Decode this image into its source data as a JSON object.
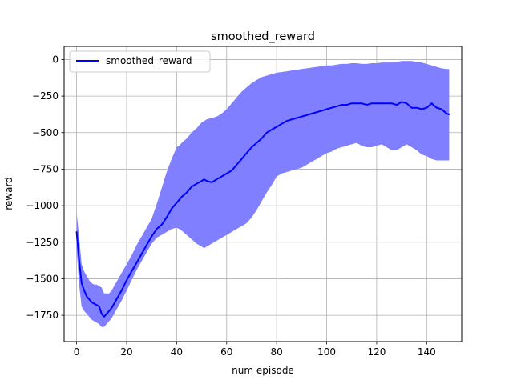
{
  "chart_data": {
    "type": "line",
    "title": "smoothed_reward",
    "xlabel": "num episode",
    "ylabel": "reward",
    "xlim": [
      -5,
      154
    ],
    "ylim": [
      -1930,
      90
    ],
    "xticks": [
      0,
      20,
      40,
      60,
      80,
      100,
      120,
      140
    ],
    "yticks": [
      0,
      -250,
      -500,
      -750,
      -1000,
      -1250,
      -1500,
      -1750
    ],
    "xtick_labels": [
      "0",
      "20",
      "40",
      "60",
      "80",
      "100",
      "120",
      "140"
    ],
    "ytick_labels": [
      "0",
      "−250",
      "−500",
      "−750",
      "−1000",
      "−1250",
      "−1500",
      "−1750"
    ],
    "grid": true,
    "legend": {
      "position": "top-left",
      "entries": [
        "smoothed_reward"
      ]
    },
    "series": [
      {
        "name": "smoothed_reward",
        "color": "#0000ff",
        "band_color": "#7f7fff",
        "x": [
          0,
          1,
          2,
          3,
          4,
          5,
          6,
          7,
          8,
          9,
          10,
          11,
          12,
          13,
          14,
          15,
          16,
          18,
          20,
          22,
          24,
          26,
          28,
          30,
          32,
          34,
          36,
          38,
          40,
          41,
          42,
          44,
          46,
          48,
          50,
          51,
          52,
          54,
          56,
          58,
          60,
          62,
          64,
          66,
          68,
          70,
          72,
          74,
          76,
          78,
          80,
          82,
          84,
          86,
          88,
          90,
          92,
          94,
          96,
          98,
          100,
          102,
          104,
          106,
          108,
          110,
          112,
          114,
          116,
          118,
          120,
          122,
          124,
          126,
          128,
          130,
          132,
          134,
          136,
          138,
          140,
          142,
          144,
          146,
          148,
          149
        ],
        "values": [
          -1180,
          -1370,
          -1530,
          -1580,
          -1620,
          -1640,
          -1660,
          -1670,
          -1680,
          -1690,
          -1740,
          -1760,
          -1740,
          -1720,
          -1700,
          -1670,
          -1640,
          -1580,
          -1510,
          -1450,
          -1390,
          -1330,
          -1270,
          -1210,
          -1160,
          -1130,
          -1080,
          -1020,
          -980,
          -960,
          -940,
          -910,
          -870,
          -850,
          -830,
          -820,
          -830,
          -840,
          -820,
          -800,
          -780,
          -760,
          -720,
          -680,
          -640,
          -600,
          -570,
          -540,
          -500,
          -480,
          -460,
          -440,
          -420,
          -410,
          -400,
          -390,
          -380,
          -370,
          -360,
          -350,
          -340,
          -330,
          -320,
          -310,
          -310,
          -300,
          -300,
          -300,
          -310,
          -300,
          -300,
          -300,
          -300,
          -300,
          -310,
          -290,
          -300,
          -330,
          -330,
          -340,
          -330,
          -300,
          -330,
          -340,
          -370,
          -375
        ],
        "upper": [
          -1050,
          -1210,
          -1400,
          -1450,
          -1480,
          -1510,
          -1530,
          -1540,
          -1540,
          -1550,
          -1560,
          -1600,
          -1600,
          -1600,
          -1580,
          -1550,
          -1520,
          -1460,
          -1400,
          -1340,
          -1270,
          -1210,
          -1150,
          -1090,
          -990,
          -880,
          -770,
          -680,
          -600,
          -590,
          -570,
          -540,
          -500,
          -470,
          -430,
          -420,
          -410,
          -400,
          -390,
          -370,
          -340,
          -300,
          -260,
          -220,
          -190,
          -160,
          -140,
          -120,
          -110,
          -100,
          -90,
          -85,
          -80,
          -75,
          -70,
          -65,
          -60,
          -55,
          -50,
          -45,
          -40,
          -40,
          -35,
          -30,
          -30,
          -25,
          -25,
          -30,
          -30,
          -25,
          -25,
          -20,
          -20,
          -20,
          -15,
          -10,
          -10,
          -10,
          -15,
          -20,
          -30,
          -40,
          -50,
          -60,
          -65,
          -65
        ],
        "lower": [
          -1300,
          -1540,
          -1690,
          -1720,
          -1740,
          -1760,
          -1780,
          -1790,
          -1800,
          -1810,
          -1830,
          -1830,
          -1810,
          -1790,
          -1770,
          -1740,
          -1710,
          -1650,
          -1580,
          -1510,
          -1440,
          -1380,
          -1320,
          -1260,
          -1220,
          -1200,
          -1180,
          -1160,
          -1150,
          -1160,
          -1170,
          -1200,
          -1230,
          -1260,
          -1280,
          -1290,
          -1280,
          -1260,
          -1240,
          -1220,
          -1200,
          -1180,
          -1160,
          -1140,
          -1120,
          -1080,
          -1030,
          -970,
          -910,
          -860,
          -800,
          -780,
          -770,
          -760,
          -750,
          -740,
          -720,
          -700,
          -680,
          -660,
          -640,
          -630,
          -610,
          -600,
          -590,
          -580,
          -570,
          -590,
          -600,
          -600,
          -590,
          -580,
          -600,
          -620,
          -620,
          -600,
          -580,
          -600,
          -620,
          -650,
          -660,
          -680,
          -690,
          -690,
          -690,
          -690
        ]
      }
    ]
  }
}
